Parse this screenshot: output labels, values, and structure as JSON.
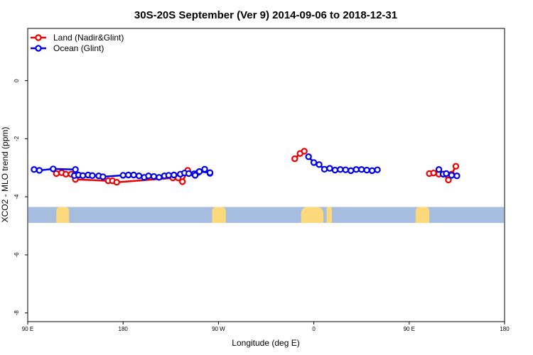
{
  "chart_data": {
    "type": "line",
    "title": "30S-20S September (Ver 9)   2014-09-06 to 2018-12-31",
    "xlabel": "Longitude (deg E)",
    "ylabel": "XCO2 - MLO trend (ppm)",
    "xlim": [
      90,
      540
    ],
    "ylim": [
      -8.3,
      1.8
    ],
    "x_ticks": [
      {
        "value": 90,
        "label": "90 E"
      },
      {
        "value": 180,
        "label": "180"
      },
      {
        "value": 270,
        "label": "90 W"
      },
      {
        "value": 360,
        "label": "0"
      },
      {
        "value": 450,
        "label": "90 E"
      },
      {
        "value": 540,
        "label": "180"
      }
    ],
    "y_ticks": [
      {
        "value": 0,
        "label": "0"
      },
      {
        "value": -2,
        "label": "-2"
      },
      {
        "value": -4,
        "label": "-4"
      },
      {
        "value": -6,
        "label": "-6"
      },
      {
        "value": -8,
        "label": "-8"
      }
    ],
    "legend": {
      "position": "top-left",
      "entries": [
        {
          "name": "Land (Nadir&Glint)",
          "color": "#ee0000"
        },
        {
          "name": "Ocean (Glint)",
          "color": "#0000ee"
        }
      ]
    },
    "latitude_band": {
      "y_range": [
        -4.35,
        -4.9
      ],
      "ocean_color": "#a7bde0",
      "land_color": "#fcd97a",
      "land_segments": [
        {
          "x0": 117,
          "x1": 129
        },
        {
          "x0": 264,
          "x1": 277
        },
        {
          "x0": 348,
          "x1": 369
        },
        {
          "x0": 372,
          "x1": 377
        },
        {
          "x0": 456,
          "x1": 469
        }
      ]
    },
    "series": [
      {
        "name": "Land (Nadir&Glint)",
        "color": "#ee0000",
        "segments": [
          {
            "x": [
              117,
              122,
              126,
              131,
              135,
              166,
              170,
              174,
              227,
              232,
              236,
              241
            ],
            "y": [
              -3.2,
              -3.17,
              -3.22,
              -3.22,
              -3.4,
              -3.45,
              -3.45,
              -3.5,
              -3.35,
              -3.35,
              -3.48,
              -3.09
            ]
          },
          {
            "x": [
              342,
              347,
              351
            ],
            "y": [
              -2.69,
              -2.51,
              -2.43
            ]
          },
          {
            "x": [
              469,
              473,
              478,
              482,
              487,
              490,
              494
            ],
            "y": [
              -3.2,
              -3.18,
              -3.22,
              -3.22,
              -3.42,
              -3.22,
              -2.95
            ]
          }
        ]
      },
      {
        "name": "Ocean (Glint)",
        "color": "#0000ee",
        "segments": [
          {
            "x": [
              96,
              101,
              114,
              135
            ],
            "y": [
              -3.06,
              -3.09,
              -3.04,
              -3.06
            ]
          },
          {
            "x": [
              134,
              138,
              142,
              147,
              151,
              157,
              161,
              180,
              185,
              190,
              195,
              200,
              204,
              209,
              214,
              219,
              223,
              228,
              234,
              238,
              242,
              247,
              251,
              257,
              262
            ],
            "y": [
              -3.27,
              -3.25,
              -3.27,
              -3.25,
              -3.27,
              -3.28,
              -3.31,
              -3.26,
              -3.25,
              -3.25,
              -3.28,
              -3.33,
              -3.28,
              -3.3,
              -3.33,
              -3.28,
              -3.26,
              -3.25,
              -3.22,
              -3.18,
              -3.2,
              -3.21,
              -3.16,
              -3.05,
              -3.19
            ]
          },
          {
            "x": [
              248,
              252,
              262
            ],
            "y": [
              -3.26,
              -3.13,
              -3.17
            ]
          },
          {
            "x": [
              355,
              360,
              365,
              370,
              375,
              380,
              385,
              390,
              395,
              400,
              405,
              410,
              415,
              420
            ],
            "y": [
              -2.62,
              -2.82,
              -2.89,
              -3.05,
              -3.02,
              -3.08,
              -3.06,
              -3.07,
              -3.1,
              -3.06,
              -3.06,
              -3.08,
              -3.1,
              -3.07
            ]
          },
          {
            "x": [
              478,
              482,
              485,
              490,
              495
            ],
            "y": [
              -3.06,
              -3.22,
              -3.2,
              -3.26,
              -3.28
            ]
          }
        ]
      }
    ]
  }
}
